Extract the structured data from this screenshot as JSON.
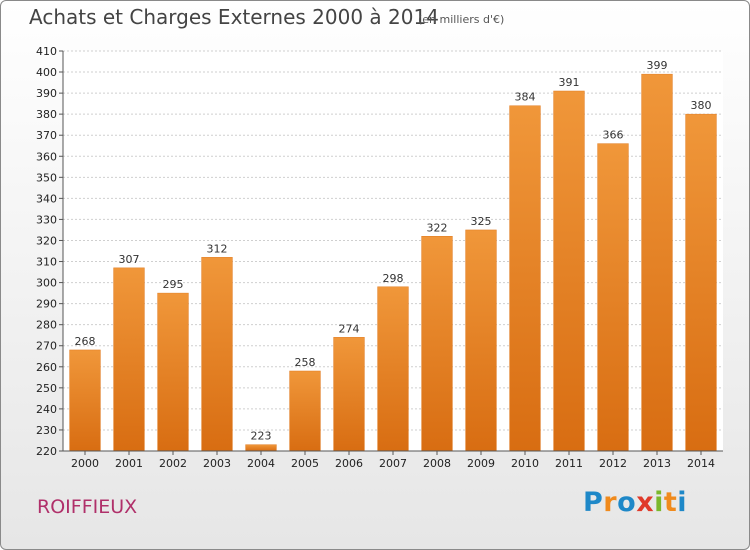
{
  "chart_data": {
    "type": "bar",
    "title": "Achats et Charges Externes 2000 à 2014",
    "subtitle": "(en milliers d'€)",
    "categories": [
      "2000",
      "2001",
      "2002",
      "2003",
      "2004",
      "2005",
      "2006",
      "2007",
      "2008",
      "2009",
      "2010",
      "2011",
      "2012",
      "2013",
      "2014"
    ],
    "values": [
      268,
      307,
      295,
      312,
      223,
      258,
      274,
      298,
      322,
      325,
      384,
      391,
      366,
      399,
      380
    ],
    "value_labels": [
      "268",
      "307",
      "295",
      "312",
      "223",
      "258",
      "274",
      "298",
      "322",
      "325",
      "384",
      "391",
      "366",
      "399",
      "380"
    ],
    "ylim": [
      220,
      410
    ],
    "yticks": [
      220,
      230,
      240,
      250,
      260,
      270,
      280,
      290,
      300,
      310,
      320,
      330,
      340,
      350,
      360,
      370,
      380,
      390,
      400,
      410
    ],
    "ytick_labels": [
      "220",
      "230",
      "240",
      "250",
      "260",
      "270",
      "280",
      "290",
      "300",
      "310",
      "320",
      "330",
      "340",
      "350",
      "360",
      "370",
      "380",
      "390",
      "400",
      "410"
    ],
    "grid": true,
    "bar_color": "#f0973a",
    "bar_color_dark": "#d86d12",
    "xlabel": "",
    "ylabel": ""
  },
  "commune": "ROIFFIEUX",
  "brand": {
    "letters": [
      "P",
      "r",
      "o",
      "x",
      "i",
      "t",
      "i"
    ],
    "colors": [
      "#1e88c8",
      "#f08a1c",
      "#1e88c8",
      "#e03a2a",
      "#7ab82c",
      "#f08a1c",
      "#1e88c8"
    ]
  }
}
